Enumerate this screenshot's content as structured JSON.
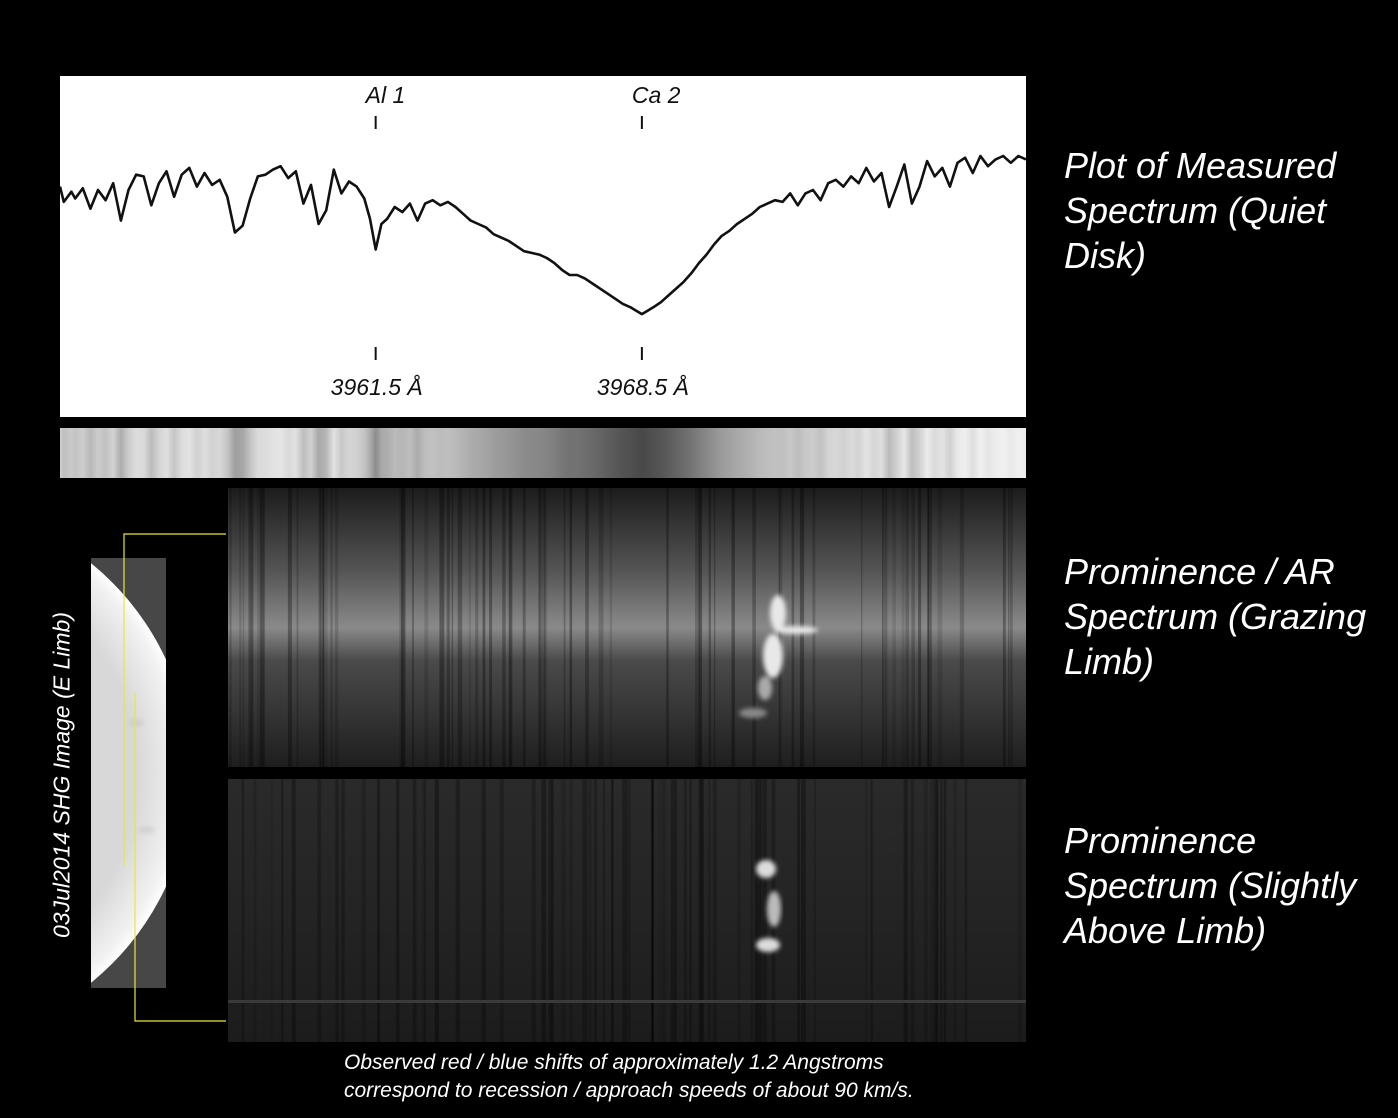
{
  "chart_data": {
    "type": "line",
    "title": "",
    "xlabel": "",
    "ylabel": "",
    "x_unit": "Å",
    "xlim": [
      3953.2,
      3978.6
    ],
    "ylim": [
      0,
      1
    ],
    "grid": false,
    "markers": [
      {
        "label": "Al 1",
        "wavelength_label": "3961.5 Å",
        "x": 3961.5
      },
      {
        "label": "Ca 2",
        "wavelength_label": "3968.5 Å",
        "x": 3968.5
      }
    ],
    "series": [
      {
        "x": [
          3953.2,
          3953.3,
          3953.5,
          3953.6,
          3953.8,
          3954.0,
          3954.2,
          3954.4,
          3954.6,
          3954.8,
          3955.0,
          3955.2,
          3955.4,
          3955.6,
          3955.8,
          3956.0,
          3956.2,
          3956.4,
          3956.6,
          3956.8,
          3957.0,
          3957.2,
          3957.4,
          3957.6,
          3957.8,
          3958.0,
          3958.2,
          3958.4,
          3958.6,
          3958.8,
          3959.0,
          3959.2,
          3959.4,
          3959.6,
          3959.8,
          3960.0,
          3960.2,
          3960.4,
          3960.6,
          3960.8,
          3961.0,
          3961.2,
          3961.35,
          3961.5,
          3961.65,
          3961.8,
          3962.0,
          3962.2,
          3962.4,
          3962.6,
          3962.8,
          3963.0,
          3963.2,
          3963.4,
          3963.6,
          3963.8,
          3964.0,
          3964.2,
          3964.4,
          3964.6,
          3964.8,
          3965.0,
          3965.2,
          3965.4,
          3965.6,
          3965.8,
          3966.0,
          3966.2,
          3966.4,
          3966.6,
          3966.8,
          3967.0,
          3967.2,
          3967.4,
          3967.6,
          3967.8,
          3968.0,
          3968.2,
          3968.35,
          3968.5,
          3968.65,
          3968.8,
          3969.0,
          3969.2,
          3969.4,
          3969.6,
          3969.8,
          3970.0,
          3970.2,
          3970.4,
          3970.6,
          3970.8,
          3971.0,
          3971.2,
          3971.4,
          3971.6,
          3971.8,
          3972.0,
          3972.2,
          3972.4,
          3972.6,
          3972.8,
          3973.0,
          3973.2,
          3973.4,
          3973.6,
          3973.8,
          3974.0,
          3974.2,
          3974.4,
          3974.6,
          3974.8,
          3975.0,
          3975.2,
          3975.4,
          3975.6,
          3975.8,
          3976.0,
          3976.2,
          3976.4,
          3976.6,
          3976.8,
          3977.0,
          3977.2,
          3977.4,
          3977.6,
          3977.8,
          3978.0,
          3978.2,
          3978.4,
          3978.6
        ],
        "y": [
          0.82,
          0.73,
          0.79,
          0.75,
          0.81,
          0.69,
          0.8,
          0.74,
          0.84,
          0.62,
          0.8,
          0.89,
          0.88,
          0.71,
          0.84,
          0.91,
          0.76,
          0.89,
          0.93,
          0.82,
          0.9,
          0.83,
          0.86,
          0.76,
          0.55,
          0.59,
          0.75,
          0.88,
          0.89,
          0.92,
          0.94,
          0.87,
          0.91,
          0.72,
          0.83,
          0.6,
          0.68,
          0.92,
          0.78,
          0.85,
          0.82,
          0.75,
          0.63,
          0.45,
          0.6,
          0.63,
          0.7,
          0.67,
          0.72,
          0.62,
          0.72,
          0.74,
          0.71,
          0.73,
          0.7,
          0.66,
          0.62,
          0.6,
          0.58,
          0.54,
          0.52,
          0.5,
          0.47,
          0.44,
          0.43,
          0.42,
          0.4,
          0.37,
          0.33,
          0.3,
          0.3,
          0.28,
          0.25,
          0.22,
          0.19,
          0.16,
          0.13,
          0.11,
          0.09,
          0.07,
          0.09,
          0.11,
          0.14,
          0.18,
          0.22,
          0.26,
          0.31,
          0.37,
          0.42,
          0.48,
          0.53,
          0.56,
          0.6,
          0.63,
          0.66,
          0.7,
          0.72,
          0.74,
          0.73,
          0.78,
          0.71,
          0.78,
          0.8,
          0.74,
          0.84,
          0.86,
          0.82,
          0.88,
          0.84,
          0.93,
          0.85,
          0.9,
          0.7,
          0.82,
          0.95,
          0.72,
          0.82,
          0.97,
          0.88,
          0.93,
          0.82,
          0.96,
          0.99,
          0.9,
          1.0,
          0.94,
          0.98,
          1.0,
          0.96,
          1.0,
          0.98
        ]
      }
    ]
  },
  "labels": {
    "plot_panel": "Plot of Measured Spectrum (Quiet Disk)",
    "prominence_ar_panel": "Prominence / AR Spectrum (Grazing Limb)",
    "prominence_panel": "Prominence Spectrum (Slightly Above Limb)",
    "shg_caption": "03Jul2014 SHG Image (E Limb)",
    "footnote_line1": "Observed red / blue shifts of approximately 1.2 Angstroms",
    "footnote_line2": "correspond to recession / approach speeds of about 90 km/s."
  },
  "colors": {
    "background": "#000000",
    "plot_background": "#ffffff",
    "plot_line": "#111111",
    "connector_line": "#e6e640"
  }
}
